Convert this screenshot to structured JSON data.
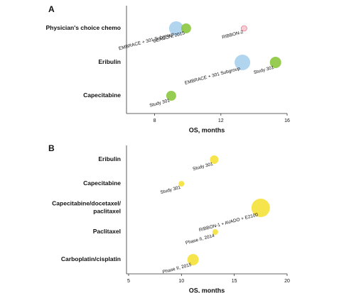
{
  "chart_data": [
    {
      "type": "bubble",
      "panel": "A",
      "xlabel": "OS, months",
      "xlim": [
        6.3,
        16
      ],
      "xticks": [
        8,
        12,
        16
      ],
      "rows": [
        {
          "name": "Physician's choice chemo",
          "points": [
            {
              "label": "EMBRACE + 301 Subgroup",
              "x": 9.3,
              "size": 10,
              "color": "#a9d0ec"
            },
            {
              "label": "BEACON, 2015",
              "x": 9.9,
              "size": 7,
              "color": "#8cc63f"
            },
            {
              "label": "RIBBON-2",
              "x": 13.4,
              "size": 4,
              "color": "#f6c6cf"
            }
          ]
        },
        {
          "name": "Eribulin",
          "points": [
            {
              "label": "EMBRACE + 301 Subgroup",
              "x": 13.3,
              "size": 11,
              "color": "#a9d0ec"
            },
            {
              "label": "Study 301",
              "x": 15.3,
              "size": 8,
              "color": "#8cc63f"
            }
          ]
        },
        {
          "name": "Capecitabine",
          "points": [
            {
              "label": "Study 301",
              "x": 9.0,
              "size": 7,
              "color": "#8cc63f"
            }
          ]
        }
      ]
    },
    {
      "type": "bubble",
      "panel": "B",
      "xlabel": "OS, months",
      "xlim": [
        4.8,
        20
      ],
      "xticks": [
        5,
        10,
        15,
        20
      ],
      "rows": [
        {
          "name": "Eribulin",
          "points": [
            {
              "label": "Study 301",
              "x": 13.1,
              "size": 6,
              "color": "#f5e13a"
            }
          ]
        },
        {
          "name": "Capecitabine",
          "points": [
            {
              "label": "Study 301",
              "x": 10.0,
              "size": 4,
              "color": "#f5e13a"
            }
          ]
        },
        {
          "name": "Capecitabine/docetaxel/\npaclitaxel",
          "points": [
            {
              "label": "RIBBON-1 + AVADO + E2100",
              "x": 17.5,
              "size": 13,
              "color": "#f5e13a"
            }
          ]
        },
        {
          "name": "Paclitaxel",
          "points": [
            {
              "label": "Phase II, 2014",
              "x": 13.2,
              "size": 4,
              "color": "#f5e13a"
            }
          ]
        },
        {
          "name": "Carboplatin/cisplatin",
          "points": [
            {
              "label": "Phase II, 2015",
              "x": 11.1,
              "size": 8,
              "color": "#f5e13a"
            }
          ]
        }
      ]
    }
  ]
}
